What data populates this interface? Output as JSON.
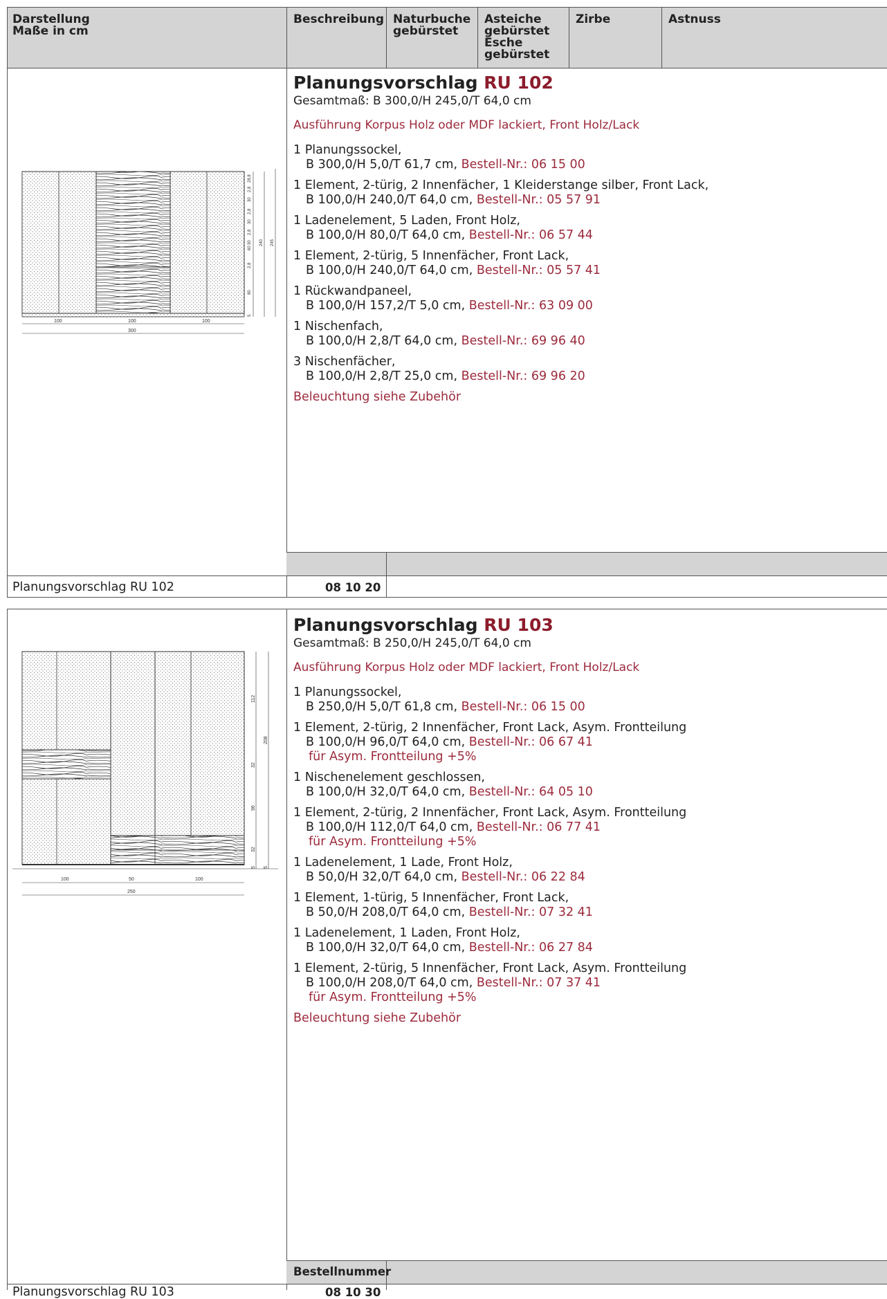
{
  "header": {
    "col1": [
      "Darstellung",
      "Maße in cm"
    ],
    "col2": [
      "Beschreibung"
    ],
    "col3": [
      "Naturbuche",
      "gebürstet"
    ],
    "col4": [
      "Asteiche",
      "gebürstet",
      "Esche",
      "gebürstet"
    ],
    "col5": [
      "Zirbe"
    ],
    "col6": [
      "Astnuss"
    ]
  },
  "sections": [
    {
      "title_prefix": "Planungsvorschlag",
      "title_code": "RU 102",
      "dimensions": "Gesamtmaß: B 300,0/H 245,0/T 64,0 cm",
      "finish": "Ausführung Korpus Holz oder MDF lackiert, Front Holz/Lack",
      "items": [
        {
          "l1": "1 Planungssockel,",
          "l2": "B 300,0/H 5,0/T 61,7 cm, ",
          "order": "Bestell-Nr.: 06 15 00"
        },
        {
          "l1": "1 Element, 2-türig, 2 Innenfächer, 1 Kleiderstange silber, Front Lack,",
          "l2": "B 100,0/H 240,0/T 64,0 cm, ",
          "order": "Bestell-Nr.: 05 57 91"
        },
        {
          "l1": "1 Ladenelement, 5 Laden, Front Holz,",
          "l2": "B 100,0/H 80,0/T 64,0 cm, ",
          "order": "Bestell-Nr.: 06 57 44"
        },
        {
          "l1": "1 Element, 2-türig, 5 Innenfächer, Front Lack,",
          "l2": "B 100,0/H 240,0/T 64,0 cm, ",
          "order": "Bestell-Nr.: 05 57 41"
        },
        {
          "l1": "1 Rückwandpaneel,",
          "l2": "B 100,0/H 157,2/T 5,0 cm, ",
          "order": "Bestell-Nr.: 63 09 00"
        },
        {
          "l1": "1 Nischenfach,",
          "l2": "B 100,0/H 2,8/T 64,0 cm, ",
          "order": "Bestell-Nr.: 69 96 40"
        },
        {
          "l1": "3 Nischenfächer,",
          "l2": "B 100,0/H 2,8/T 25,0 cm, ",
          "order": "Bestell-Nr.: 69 96 20"
        }
      ],
      "lighting": "Beleuchtung siehe Zubehör",
      "order_header": "",
      "footer_label": "Planungsvorschlag RU 102",
      "footer_number": "08 10 20",
      "drawing": {
        "v_dims": [
          "2,8",
          "28,8",
          "30",
          "2,8",
          "30",
          "2,8",
          "30",
          "60",
          "240",
          "245",
          "2,8",
          "80",
          "5"
        ],
        "h_dims": [
          "100",
          "100",
          "100",
          "300"
        ]
      }
    },
    {
      "title_prefix": "Planungsvorschlag",
      "title_code": "RU 103",
      "dimensions": "Gesamtmaß: B 250,0/H 245,0/T 64,0 cm",
      "finish": "Ausführung Korpus Holz oder MDF lackiert, Front Holz/Lack",
      "items": [
        {
          "l1": "1 Planungssockel,",
          "l2": "B 250,0/H 5,0/T 61,8 cm, ",
          "order": "Bestell-Nr.: 06 15 00"
        },
        {
          "l1": "1 Element, 2-türig, 2 Innenfächer, Front Lack, Asym. Frontteilung",
          "l2": "B 100,0/H 96,0/T 64,0 cm, ",
          "order": "Bestell-Nr.: 06 67 41",
          "l3": "für Asym. Frontteilung +5%"
        },
        {
          "l1": "1 Nischenelement geschlossen,",
          "l2": "B 100,0/H 32,0/T 64,0 cm, ",
          "order": "Bestell-Nr.: 64 05 10"
        },
        {
          "l1": "1 Element, 2-türig, 2 Innenfächer, Front Lack, Asym. Frontteilung",
          "l2": "B 100,0/H 112,0/T 64,0 cm, ",
          "order": "Bestell-Nr.: 06 77 41",
          "l3": "für Asym. Frontteilung +5%"
        },
        {
          "l1": "1 Ladenelement, 1 Lade, Front Holz,",
          "l2": "B 50,0/H 32,0/T 64,0 cm, ",
          "order": "Bestell-Nr.: 06 22 84"
        },
        {
          "l1": "1 Element, 1-türig, 5 Innenfächer, Front Lack,",
          "l2": "B 50,0/H 208,0/T 64,0 cm, ",
          "order": "Bestell-Nr.: 07 32 41"
        },
        {
          "l1": "1 Ladenelement, 1 Laden, Front Holz,",
          "l2": "B 100,0/H 32,0/T 64,0 cm, ",
          "order": "Bestell-Nr.: 06 27 84"
        },
        {
          "l1": "1 Element, 2-türig, 5 Innenfächer, Front Lack, Asym. Frontteilung",
          "l2": "B 100,0/H 208,0/T 64,0 cm, ",
          "order": "Bestell-Nr.: 07 37 41",
          "l3": "für Asym. Frontteilung +5%"
        }
      ],
      "lighting": "Beleuchtung siehe Zubehör",
      "order_header": "Bestellnummer",
      "footer_label": "Planungsvorschlag RU 103",
      "footer_number": "08 10 30",
      "drawing": {
        "v_dims": [
          "112",
          "208",
          "32",
          "96",
          "32",
          "5",
          "5"
        ],
        "h_dims": [
          "100",
          "50",
          "100",
          "250"
        ]
      }
    }
  ],
  "colors": {
    "accent": "#9c2a3c",
    "title_accent": "#8c1c2c",
    "gray": "#d4d4d4"
  }
}
